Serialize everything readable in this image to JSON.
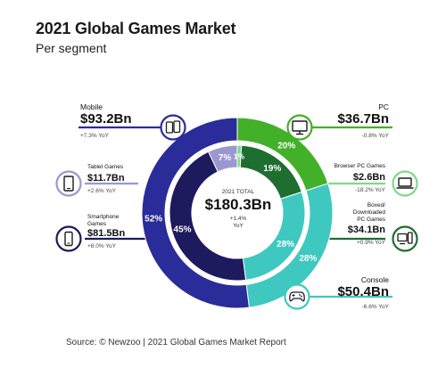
{
  "title": "2021 Global Games Market",
  "subtitle": "Per segment",
  "source": "Source: © Newzoo | 2021 Global Games Market Report",
  "center": {
    "label": "2021 TOTAL",
    "value": "$180.3Bn",
    "yoy_line1": "+1.4%",
    "yoy_line2": "YoY"
  },
  "colors": {
    "mobile": "#2a2c9a",
    "pc": "#43b02a",
    "console": "#3fc8c0",
    "smartphone": "#1d1a5e",
    "tablet": "#9a98cf",
    "browser_pc": "#7fd88d",
    "boxed_pc": "#1e6e30"
  },
  "labels": {
    "mobile": {
      "name": "Mobile",
      "value": "$93.2Bn",
      "yoy": "+7.3% YoY"
    },
    "tablet": {
      "name": "Tablet Games",
      "value": "$11.7Bn",
      "yoy": "+2.6% YoY"
    },
    "smartphone": {
      "name_1": "Smartphone",
      "name_2": "Games",
      "value": "$81.5Bn",
      "yoy": "+8.0% YoY"
    },
    "pc": {
      "name": "PC",
      "value": "$36.7Bn",
      "yoy": "-0.8% YoY"
    },
    "browser_pc": {
      "name": "Browser PC Games",
      "value": "$2.6Bn",
      "yoy": "-18.2% YoY"
    },
    "boxed_pc": {
      "name_1": "Boxed/",
      "name_2": "Downloaded",
      "name_3": "PC Games",
      "value": "$34.1Bn",
      "yoy": "+0.9% YoY"
    },
    "console": {
      "name": "Console",
      "value": "$50.4Bn",
      "yoy": "-6.6% YoY"
    }
  },
  "icons": {
    "mobile": "dual-phone-icon",
    "tablet": "tablet-icon",
    "smartphone": "smartphone-icon",
    "pc": "monitor-icon",
    "browser_pc": "laptop-icon",
    "boxed_pc": "pc-tower-icon",
    "console": "gamepad-icon"
  },
  "chart_data": [
    {
      "type": "pie",
      "name": "outer",
      "categories": [
        "PC",
        "Console",
        "Mobile"
      ],
      "values": [
        20,
        28,
        52
      ],
      "value_labels": [
        "20%",
        "28%",
        "52%"
      ],
      "amounts_bn": [
        36.7,
        50.4,
        93.2
      ]
    },
    {
      "type": "pie",
      "name": "inner",
      "categories": [
        "Browser PC Games",
        "Boxed/Downloaded PC Games",
        "Console",
        "Smartphone Games",
        "Tablet Games"
      ],
      "values": [
        1,
        19,
        28,
        45,
        7
      ],
      "value_labels": [
        "1%",
        "19%",
        "28%",
        "45%",
        "7%"
      ],
      "amounts_bn": [
        2.6,
        34.1,
        50.4,
        81.5,
        11.7
      ]
    }
  ]
}
